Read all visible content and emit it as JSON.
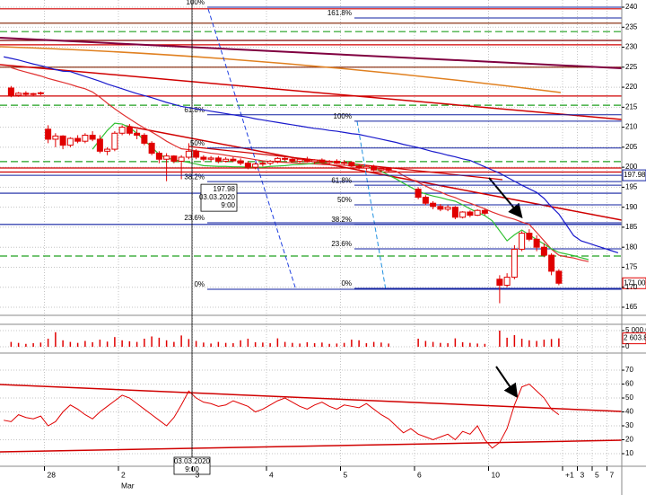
{
  "chart_data": [
    {
      "type": "candlestick",
      "categories": [
        null,
        null,
        null,
        null,
        null,
        null,
        "28",
        null,
        null,
        null,
        null,
        null,
        null,
        null,
        null,
        null,
        "2",
        null,
        null,
        null,
        null,
        null,
        null,
        null,
        null,
        null,
        "3",
        null,
        null,
        null,
        null,
        null,
        null,
        null,
        null,
        null,
        "4",
        null,
        null,
        null,
        null,
        null,
        null,
        null,
        null,
        null,
        "5",
        null,
        null,
        null,
        null,
        null,
        null,
        null,
        null,
        null,
        "6",
        null,
        null,
        null,
        null,
        null,
        null,
        null,
        null,
        null,
        "10",
        null,
        null,
        null,
        null,
        null,
        null,
        null,
        null,
        null,
        "+1",
        null,
        "3",
        null,
        "5",
        null,
        "7",
        null
      ],
      "month_label": "Mar",
      "open": [
        null,
        219.8,
        218.0,
        218.5,
        218.2,
        218.4,
        209.5,
        207.0,
        207.8,
        205.5,
        207.2,
        206.5,
        208.0,
        207.0,
        204.0,
        204.5,
        208.5,
        210.0,
        208.5,
        208.0,
        206.0,
        203.5,
        202.0,
        202.8,
        201.5,
        202.5,
        204.0,
        202.5,
        202.0,
        202.3,
        201.5,
        202.0,
        201.6,
        201.0,
        200.0,
        200.8,
        201.0,
        201.5,
        202.2,
        202.0,
        201.5,
        202.0,
        201.4,
        201.8,
        201.2,
        201.5,
        201.0,
        201.2,
        200.3,
        199.8,
        200.2,
        199.3,
        199.6,
        null,
        null,
        null,
        194.5,
        192.5,
        191.0,
        190.2,
        189.5,
        190.0,
        187.5,
        188.8,
        188.0,
        189.2,
        null,
        172.0,
        170.5,
        172.5,
        179.5,
        183.5,
        182.0,
        180.0,
        178.0,
        174.0,
        null,
        null,
        null,
        null,
        null,
        null,
        null,
        null
      ],
      "high": [
        null,
        220.3,
        218.8,
        219.0,
        218.6,
        218.9,
        210.5,
        208.5,
        208.0,
        207.5,
        208.0,
        208.5,
        209.0,
        208.0,
        205.0,
        209.0,
        210.5,
        210.8,
        209.5,
        208.5,
        206.5,
        204.0,
        203.5,
        203.0,
        203.0,
        206.0,
        204.5,
        203.0,
        202.8,
        202.8,
        202.5,
        202.6,
        202.2,
        201.5,
        201.2,
        201.5,
        201.8,
        202.5,
        202.8,
        202.5,
        202.3,
        202.6,
        202.0,
        202.2,
        201.8,
        202.0,
        201.8,
        201.5,
        200.8,
        200.5,
        200.6,
        200.0,
        200.0,
        null,
        null,
        null,
        195.0,
        193.0,
        191.5,
        190.8,
        190.5,
        190.3,
        189.0,
        189.2,
        189.5,
        189.6,
        null,
        173.0,
        173.5,
        180.5,
        184.0,
        184.5,
        183.0,
        181.0,
        178.5,
        174.5,
        null,
        null,
        null,
        null,
        null,
        null,
        null,
        null
      ],
      "low": [
        null,
        217.5,
        217.6,
        217.8,
        217.8,
        218.0,
        206.0,
        205.0,
        204.5,
        205.0,
        206.0,
        206.0,
        206.5,
        203.5,
        203.0,
        204.0,
        208.0,
        208.0,
        207.0,
        205.5,
        203.0,
        201.0,
        196.5,
        201.0,
        197.0,
        202.0,
        202.0,
        201.5,
        201.5,
        201.0,
        201.2,
        201.3,
        200.5,
        199.5,
        199.5,
        200.2,
        200.5,
        201.0,
        201.5,
        201.2,
        201.0,
        201.2,
        200.8,
        201.0,
        200.5,
        200.8,
        200.5,
        200.0,
        199.5,
        199.2,
        199.0,
        198.8,
        198.9,
        null,
        null,
        null,
        192.0,
        190.5,
        189.5,
        189.0,
        189.0,
        187.0,
        187.2,
        187.5,
        187.8,
        188.0,
        null,
        166.0,
        170.0,
        172.0,
        179.0,
        181.5,
        179.0,
        177.5,
        173.0,
        170.5,
        null,
        null,
        null,
        null,
        null,
        null,
        null,
        null
      ],
      "close": [
        null,
        218.0,
        218.5,
        218.2,
        218.4,
        218.6,
        207.0,
        207.8,
        205.5,
        207.2,
        206.5,
        208.0,
        207.0,
        204.0,
        204.5,
        208.5,
        210.0,
        208.5,
        208.0,
        206.0,
        203.5,
        202.0,
        202.8,
        201.5,
        202.5,
        204.0,
        202.5,
        202.0,
        202.3,
        201.5,
        202.0,
        201.6,
        201.0,
        200.0,
        200.8,
        201.0,
        201.5,
        202.2,
        202.0,
        201.5,
        202.0,
        201.4,
        201.8,
        201.2,
        201.5,
        201.0,
        201.2,
        200.3,
        199.8,
        200.2,
        199.3,
        199.6,
        199.2,
        null,
        null,
        null,
        192.5,
        191.0,
        190.2,
        189.5,
        190.0,
        187.5,
        188.8,
        188.0,
        189.2,
        188.5,
        null,
        170.5,
        172.5,
        179.5,
        183.5,
        182.0,
        180.0,
        178.0,
        174.0,
        171.0,
        null,
        null,
        null,
        null,
        null,
        null,
        null,
        null
      ],
      "color": "#e00000",
      "series": [
        {
          "color": "#1a1acc",
          "values": [
            227.6,
            227.2,
            226.8,
            226.3,
            225.8,
            225.4,
            224.9,
            224.4,
            224.0,
            223.9,
            223.3,
            222.7,
            222.1,
            221.5,
            220.8,
            220.2,
            219.6,
            219.0,
            218.4,
            217.9,
            217.4,
            216.8,
            216.2,
            215.7,
            215.2,
            214.9,
            214.6,
            214.3,
            214.0,
            213.7,
            213.4,
            213.1,
            212.8,
            212.5,
            212.1,
            211.8,
            211.5,
            211.2,
            210.9,
            210.6,
            210.3,
            210.0,
            209.7,
            209.5,
            209.2,
            209.0,
            208.7,
            208.4,
            208.2,
            207.8,
            207.4,
            207.0,
            206.6,
            206.2,
            205.7,
            205.3,
            204.9,
            204.4,
            203.9,
            203.5,
            203.0,
            202.6,
            202.1,
            201.7,
            200.9,
            200.1,
            199.3,
            198.5,
            197.5,
            196.5,
            195.5,
            194.6,
            193.7,
            192.2,
            190.1,
            188.3,
            185.6,
            182.9,
            181.6,
            181.0,
            180.4,
            179.8,
            179.2,
            178.6
          ]
        },
        {
          "color": "#e03030",
          "values": [
            null,
            224.9,
            224.3,
            223.8,
            223.3,
            222.8,
            222.2,
            221.7,
            221.2,
            220.7,
            220.1,
            219.6,
            218.8,
            217.5,
            216.0,
            214.6,
            213.3,
            212.1,
            210.9,
            209.8,
            208.8,
            207.7,
            206.5,
            205.5,
            204.6,
            204.4,
            204.1,
            203.8,
            203.5,
            203.3,
            203.0,
            202.7,
            202.5,
            202.2,
            201.9,
            201.6,
            201.4,
            201.3,
            201.2,
            201.1,
            201.0,
            200.9,
            200.8,
            200.7,
            200.6,
            200.5,
            200.5,
            200.4,
            200.3,
            200.1,
            199.8,
            199.6,
            199.3,
            199.0,
            197.9,
            197.0,
            196.2,
            195.3,
            194.4,
            193.8,
            193.0,
            192.4,
            191.6,
            191.0,
            190.3,
            189.6,
            188.8,
            188.1,
            187.5,
            187.0,
            186.3,
            185.7,
            183.7,
            181.6,
            179.5,
            178.0,
            177.6,
            177.3,
            176.8,
            176.4,
            null,
            null,
            null,
            null
          ]
        },
        {
          "color": "#30c030",
          "values": [
            null,
            null,
            null,
            null,
            null,
            null,
            null,
            null,
            null,
            null,
            null,
            null,
            204.5,
            206.9,
            209.2,
            211.0,
            210.8,
            209.9,
            208.5,
            206.7,
            205.0,
            203.2,
            202.3,
            201.9,
            201.5,
            201.2,
            200.8,
            200.4,
            200.3,
            200.2,
            200.2,
            200.1,
            200.1,
            200.0,
            200.0,
            200.0,
            200.2,
            200.3,
            200.4,
            200.6,
            200.7,
            200.8,
            201.0,
            201.1,
            201.2,
            201.3,
            201.2,
            200.9,
            200.5,
            200.1,
            199.7,
            199.0,
            198.0,
            197.1,
            196.0,
            195.0,
            194.0,
            193.3,
            192.8,
            192.4,
            191.9,
            191.5,
            190.6,
            189.6,
            188.7,
            187.9,
            186.6,
            184.1,
            181.6,
            183.1,
            184.3,
            183.1,
            181.9,
            180.8,
            179.6,
            178.7,
            178.3,
            177.9,
            177.4,
            176.9,
            null,
            null,
            null,
            null
          ]
        }
      ],
      "levels": [
        {
          "value": 239.6,
          "color": "#d00000"
        },
        {
          "value": 236.0,
          "color": "#802000"
        },
        {
          "value": 233.9,
          "color": "#20a020",
          "dashed": true
        },
        {
          "value": 231.7,
          "color": "#800000"
        },
        {
          "value": 230.6,
          "color": "#d00000"
        },
        {
          "value": 225.0,
          "color": "#802000"
        },
        {
          "value": 217.8,
          "color": "#d00000"
        },
        {
          "value": 215.5,
          "color": "#20a020",
          "dashed": true
        },
        {
          "value": 201.4,
          "color": "#20a020",
          "dashed": true
        },
        {
          "value": 199.8,
          "color": "#d00000"
        },
        {
          "value": 198.8,
          "color": "#d00000"
        },
        {
          "value": 193.5,
          "color": "#1020a0"
        },
        {
          "value": 185.7,
          "color": "#1020a0"
        },
        {
          "value": 177.8,
          "color": "#20a020",
          "dashed": true
        }
      ],
      "fibonacci": [
        {
          "levels": [
            {
              "label": "100%",
              "value": 240
            },
            {
              "label": "61.8%",
              "value": 213.1
            },
            {
              "label": "50%",
              "value": 204.8
            },
            {
              "label": "38.2%",
              "value": 196.4
            },
            {
              "label": "23.6%",
              "value": 186.1
            },
            {
              "label": "0%",
              "value": 169.5
            }
          ]
        },
        {
          "levels": [
            {
              "label": "161.8%",
              "value": 237.3
            },
            {
              "label": "100%",
              "value": 211.5
            },
            {
              "label": "61.8%",
              "value": 195.5
            },
            {
              "label": "50%",
              "value": 190.6
            },
            {
              "label": "38.2%",
              "value": 185.7
            },
            {
              "label": "23.6%",
              "value": 179.6
            },
            {
              "label": "0%",
              "value": 169.7
            }
          ]
        }
      ],
      "crosshair": {
        "value": 197.98,
        "label": "197.98",
        "date": "03.03.2020",
        "time": "9:00"
      },
      "last": {
        "value": 171,
        "label": "171.00"
      },
      "ylim": [
        163.2,
        241.8
      ],
      "yticks": [
        165,
        170,
        175,
        180,
        185,
        190,
        195,
        200,
        205,
        210,
        215,
        220,
        225,
        230,
        235,
        240
      ],
      "grid": true
    },
    {
      "type": "bar",
      "values": [
        null,
        1500,
        1200,
        900,
        1100,
        1300,
        2500,
        4500,
        2000,
        1500,
        1200,
        1800,
        1400,
        2200,
        1600,
        3000,
        2000,
        1700,
        1500,
        2500,
        3200,
        2800,
        2000,
        1500,
        3500,
        2400,
        1800,
        1300,
        1000,
        1500,
        1200,
        1100,
        2000,
        2500,
        1400,
        1300,
        1100,
        2600,
        1500,
        1200,
        1000,
        1400,
        1100,
        1300,
        900,
        1000,
        1200,
        2200,
        2000,
        1100,
        1500,
        1300,
        1000,
        null,
        null,
        null,
        2500,
        1800,
        1500,
        1200,
        1100,
        2600,
        1400,
        1200,
        1000,
        900,
        null,
        5000,
        2800,
        3600,
        2500,
        2000,
        1800,
        2200,
        2400,
        2603.8,
        null,
        null,
        null,
        null,
        null,
        null,
        null,
        null
      ],
      "color": "#e00000",
      "last": {
        "value": 2603.8,
        "label": "2 603.8"
      },
      "ylim": [
        -1666.7,
        6666.7
      ],
      "yticks": [
        0,
        {
          "value": 5000,
          "label": "5 000.0"
        }
      ],
      "grid": true
    },
    {
      "type": "line",
      "series": [
        {
          "color": "#e00000",
          "values": [
            34,
            33,
            38,
            36,
            35,
            37,
            30,
            33,
            40,
            45,
            42,
            38,
            35,
            40,
            44,
            48,
            52,
            50,
            46,
            42,
            38,
            34,
            30,
            36,
            45,
            55,
            50,
            47,
            46,
            44,
            45,
            48,
            46,
            44,
            40,
            42,
            45,
            48,
            50,
            47,
            44,
            42,
            45,
            47,
            44,
            42,
            45,
            44,
            43,
            46,
            42,
            38,
            35,
            30,
            25,
            28,
            24,
            22,
            20,
            22,
            24,
            20,
            26,
            24,
            30,
            20,
            14,
            18,
            28,
            45,
            58,
            60,
            55,
            50,
            42,
            38,
            null,
            null,
            null,
            null,
            null,
            null,
            null,
            null
          ]
        }
      ],
      "ylim": [
        1.6,
        81
      ],
      "yticks": [
        10,
        20,
        30,
        40,
        50,
        60,
        70
      ],
      "grid": true
    }
  ]
}
